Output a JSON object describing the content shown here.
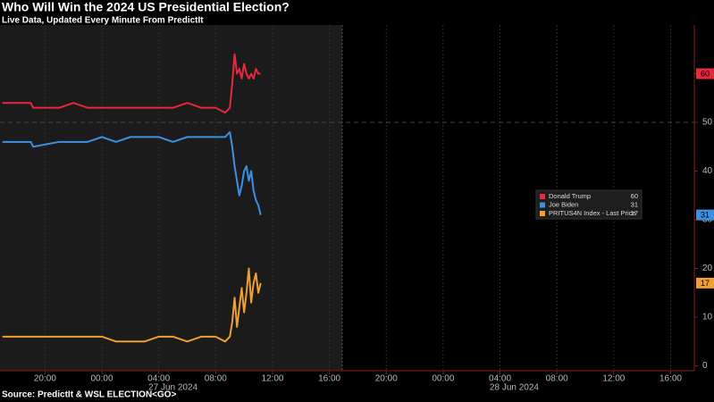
{
  "chart_data": {
    "type": "line",
    "title": "Who Will Win the 2024 US Presidential Election?",
    "subtitle": "Live Data, Updated Every Minute From PredictIt",
    "source": "Source: PredictIt & WSL ELECTION<GO>",
    "x": [
      "2024-06-26T17:00",
      "2024-06-26T19:00",
      "2024-06-26T19:10",
      "2024-06-26T21:00",
      "2024-06-26T22:00",
      "2024-06-26T23:00",
      "2024-06-27T00:00",
      "2024-06-27T01:00",
      "2024-06-27T02:00",
      "2024-06-27T03:00",
      "2024-06-27T04:00",
      "2024-06-27T05:00",
      "2024-06-27T06:00",
      "2024-06-27T07:00",
      "2024-06-27T08:00",
      "2024-06-27T08:40",
      "2024-06-27T09:00",
      "2024-06-27T09:10",
      "2024-06-27T09:20",
      "2024-06-27T09:30",
      "2024-06-27T09:40",
      "2024-06-27T09:50",
      "2024-06-27T10:00",
      "2024-06-27T10:10",
      "2024-06-27T10:20",
      "2024-06-27T10:30",
      "2024-06-27T10:40",
      "2024-06-27T10:50",
      "2024-06-27T11:00",
      "2024-06-27T11:10"
    ],
    "series": [
      {
        "name": "Donald Trump",
        "color": "#e8283c",
        "last_value": 60,
        "values": [
          54,
          54,
          53,
          53,
          54,
          53,
          53,
          53,
          53,
          53,
          53,
          53,
          54,
          53,
          53,
          52,
          53,
          58,
          64,
          60,
          61,
          59,
          62,
          60,
          59,
          60,
          59,
          61,
          60,
          60
        ]
      },
      {
        "name": "Joe Biden",
        "color": "#3d8fe0",
        "last_value": 31,
        "values": [
          46,
          46,
          45,
          46,
          46,
          46,
          47,
          46,
          47,
          47,
          47,
          46,
          47,
          47,
          47,
          47,
          48,
          45,
          41,
          38,
          35,
          37,
          40,
          41,
          38,
          40,
          36,
          34,
          33,
          31
        ]
      },
      {
        "name": "PRITUS4N Index - Last Price",
        "color": "#f0a030",
        "last_value": 17,
        "values": [
          6,
          6,
          6,
          6,
          6,
          6,
          6,
          5,
          5,
          5,
          6,
          6,
          5,
          6,
          6,
          5,
          6,
          9,
          14,
          8,
          12,
          16,
          11,
          15,
          20,
          13,
          17,
          19,
          15,
          17
        ]
      }
    ],
    "xlim": [
      "2024-06-26T16:50",
      "2024-06-28T17:40"
    ],
    "xticks": [
      {
        "value": "2024-06-26T20:00",
        "label": "20:00"
      },
      {
        "value": "2024-06-27T00:00",
        "label": "00:00"
      },
      {
        "value": "2024-06-27T04:00",
        "label": "04:00"
      },
      {
        "value": "2024-06-27T08:00",
        "label": "08:00"
      },
      {
        "value": "2024-06-27T12:00",
        "label": "12:00"
      },
      {
        "value": "2024-06-27T16:00",
        "label": "16:00"
      },
      {
        "value": "2024-06-27T20:00",
        "label": "20:00"
      },
      {
        "value": "2024-06-28T00:00",
        "label": "00:00"
      },
      {
        "value": "2024-06-28T04:00",
        "label": "04:00"
      },
      {
        "value": "2024-06-28T08:00",
        "label": "08:00"
      },
      {
        "value": "2024-06-28T12:00",
        "label": "12:00"
      },
      {
        "value": "2024-06-28T16:00",
        "label": "16:00"
      }
    ],
    "date_labels": [
      {
        "value": "2024-06-27T05:00",
        "label": "27 Jun 2024"
      },
      {
        "value": "2024-06-28T05:00",
        "label": "28 Jun 2024"
      }
    ],
    "ylim": [
      -1,
      70
    ],
    "yticks": [
      0,
      10,
      20,
      30,
      40,
      50,
      60
    ],
    "reference_line": 50,
    "grid": true
  }
}
